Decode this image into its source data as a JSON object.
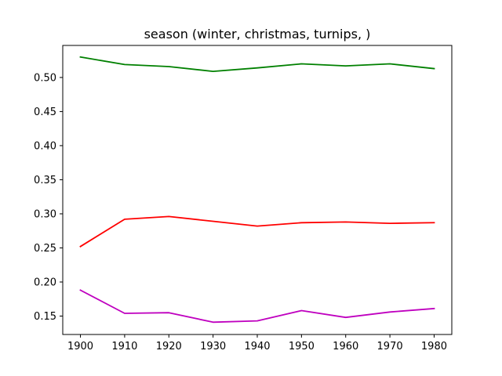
{
  "chart_data": {
    "type": "line",
    "title": "season (winter, christmas, turnips, )",
    "xlabel": "",
    "ylabel": "",
    "x": [
      1900,
      1910,
      1920,
      1930,
      1940,
      1950,
      1960,
      1970,
      1980
    ],
    "xlim": [
      1896,
      1984
    ],
    "ylim": [
      0.123,
      0.547
    ],
    "xticks": [
      1900,
      1910,
      1920,
      1930,
      1940,
      1950,
      1960,
      1970,
      1980
    ],
    "yticks": [
      0.15,
      0.2,
      0.25,
      0.3,
      0.35,
      0.4,
      0.45,
      0.5
    ],
    "grid": false,
    "series": [
      {
        "color": "#008000",
        "values": [
          0.53,
          0.519,
          0.516,
          0.509,
          0.514,
          0.52,
          0.517,
          0.52,
          0.513
        ]
      },
      {
        "color": "#ff0000",
        "values": [
          0.252,
          0.292,
          0.296,
          0.289,
          0.282,
          0.287,
          0.288,
          0.286,
          0.287
        ]
      },
      {
        "color": "#bf00bf",
        "values": [
          0.188,
          0.154,
          0.155,
          0.141,
          0.143,
          0.158,
          0.148,
          0.156,
          0.161
        ]
      }
    ]
  }
}
